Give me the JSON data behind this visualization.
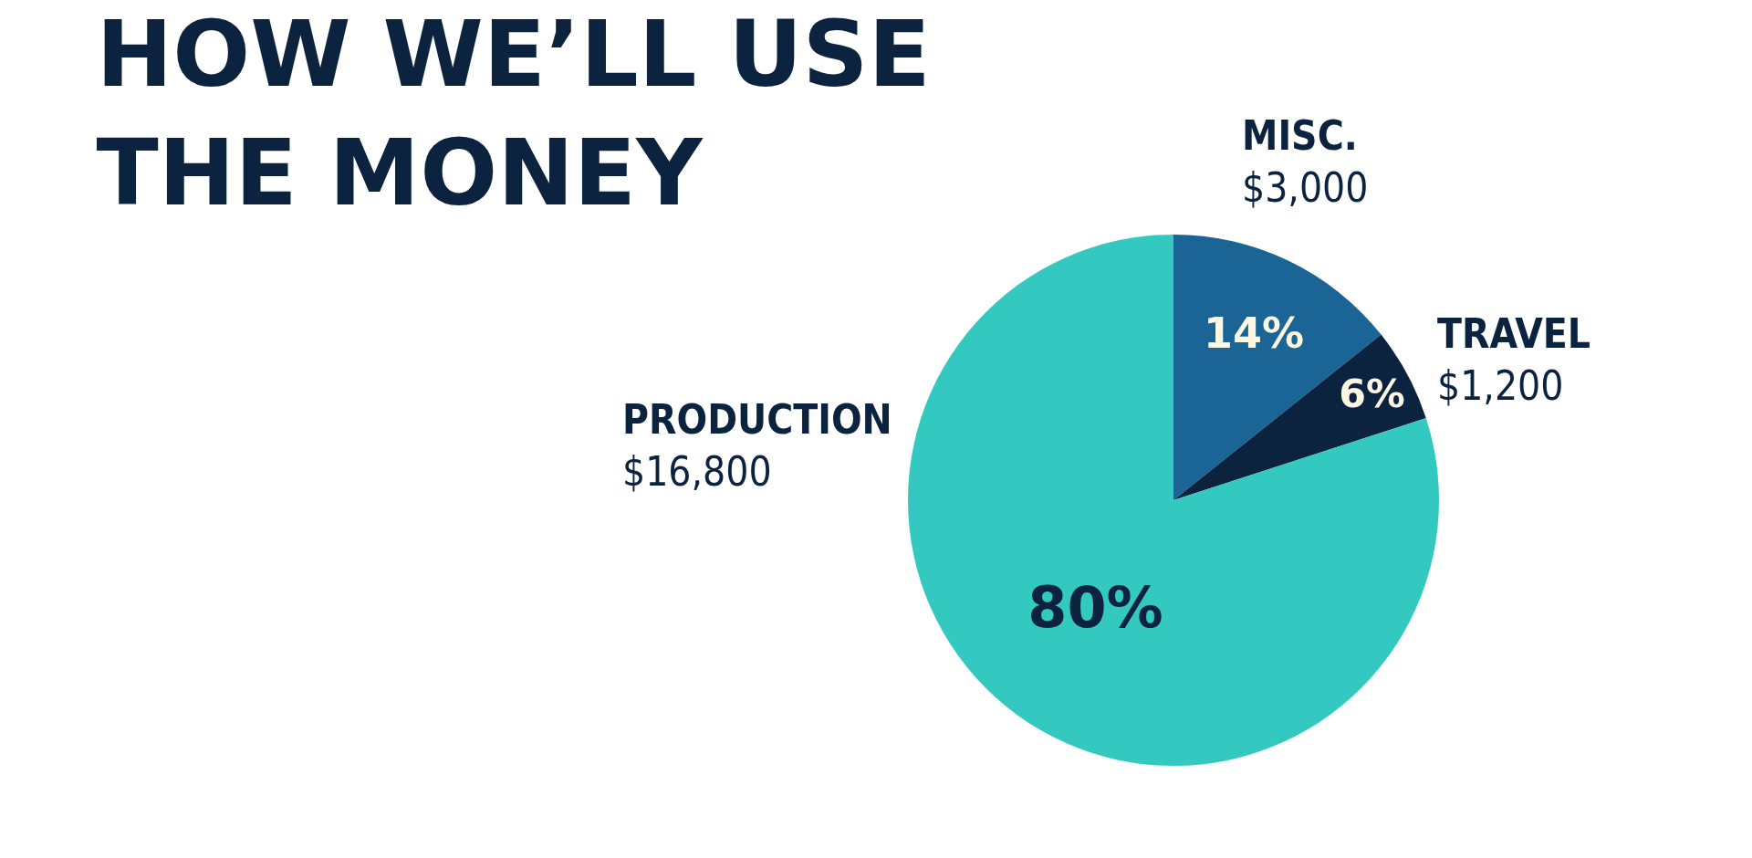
{
  "chart_data": {
    "type": "pie",
    "title": "HOW WE’LL USE\nTHE MONEY",
    "categories": [
      "MISC.",
      "TRAVEL",
      "PRODUCTION"
    ],
    "values": [
      3000,
      1200,
      16800
    ],
    "colors": [
      "#1a6496",
      "#0c2340",
      "#33c9c0"
    ],
    "value_labels": [
      "$3,000",
      "$1,200",
      "$16,800"
    ],
    "annotations": [
      "14%",
      "6%",
      "80%"
    ],
    "legend": false
  }
}
